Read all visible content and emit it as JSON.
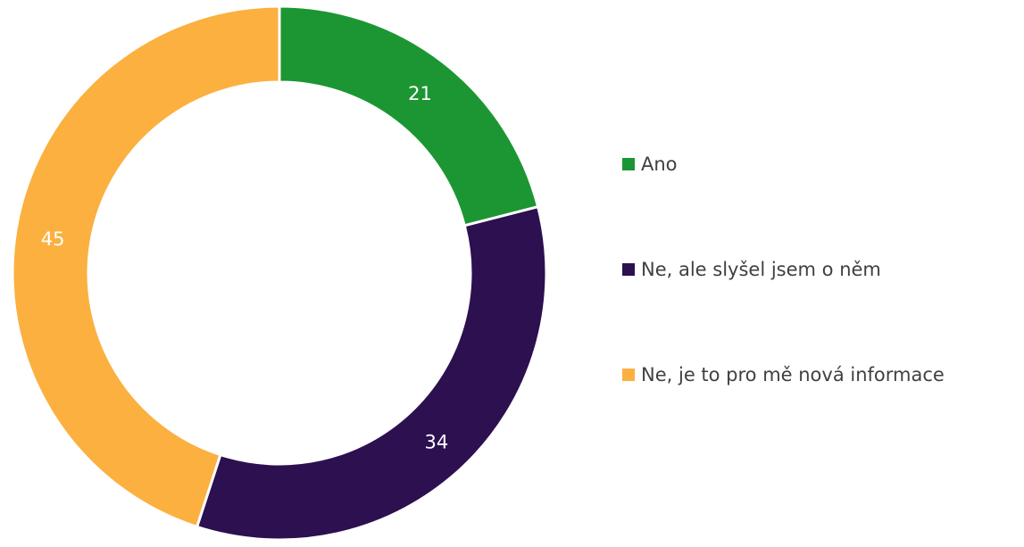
{
  "chart_data": {
    "type": "doughnut",
    "categories": [
      "Ano",
      "Ne, ale slyšel jsem o něm",
      "Ne, je to pro mě nová informace"
    ],
    "values": [
      21,
      34,
      45
    ],
    "colors": [
      "#1c9632",
      "#2c1050",
      "#fbb040"
    ],
    "legend": "right"
  }
}
